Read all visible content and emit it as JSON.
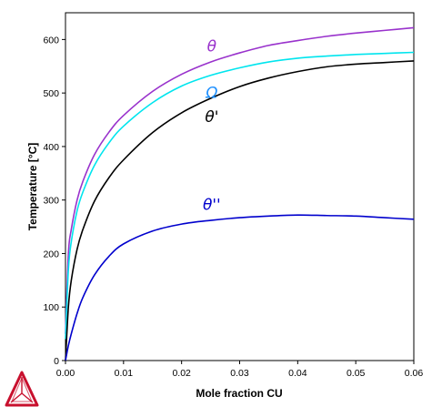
{
  "chart_data": {
    "type": "line",
    "title": "",
    "xlabel": "Mole fraction CU",
    "ylabel": "Temperature [°C]",
    "xlim": [
      0,
      0.06
    ],
    "ylim": [
      0,
      650
    ],
    "x_ticks": [
      "0.00",
      "0.01",
      "0.02",
      "0.03",
      "0.04",
      "0.05",
      "0.06"
    ],
    "y_ticks": [
      "0",
      "100",
      "200",
      "300",
      "400",
      "500",
      "600"
    ],
    "grid": false,
    "legend": "none",
    "series": [
      {
        "name": "θ",
        "color": "#9932CC",
        "x": [
          0.0,
          0.0005,
          0.001,
          0.002,
          0.003,
          0.005,
          0.0075,
          0.01,
          0.015,
          0.02,
          0.025,
          0.03,
          0.035,
          0.04,
          0.045,
          0.05,
          0.055,
          0.06
        ],
        "y": [
          50,
          200,
          245,
          300,
          335,
          385,
          427,
          458,
          503,
          535,
          558,
          575,
          589,
          598,
          606,
          612,
          617,
          622
        ]
      },
      {
        "name": "Ω",
        "color": "#00E5EE",
        "x": [
          0.0,
          0.0005,
          0.001,
          0.002,
          0.003,
          0.005,
          0.0075,
          0.01,
          0.015,
          0.02,
          0.025,
          0.03,
          0.035,
          0.04,
          0.045,
          0.05,
          0.055,
          0.06
        ],
        "y": [
          40,
          170,
          222,
          280,
          315,
          365,
          407,
          438,
          482,
          513,
          533,
          547,
          558,
          565,
          569,
          572,
          574,
          576
        ]
      },
      {
        "name": "θ'",
        "color": "#000000",
        "x": [
          0.0,
          0.0005,
          0.001,
          0.002,
          0.003,
          0.005,
          0.0075,
          0.01,
          0.015,
          0.02,
          0.025,
          0.03,
          0.035,
          0.04,
          0.045,
          0.05,
          0.055,
          0.06
        ],
        "y": [
          0,
          100,
          150,
          208,
          245,
          298,
          342,
          375,
          426,
          463,
          490,
          512,
          528,
          540,
          549,
          554,
          557,
          560
        ]
      },
      {
        "name": "θ''",
        "color": "#0000CD",
        "x": [
          0.0,
          0.0005,
          0.001,
          0.002,
          0.003,
          0.005,
          0.0075,
          0.01,
          0.015,
          0.02,
          0.025,
          0.03,
          0.035,
          0.04,
          0.045,
          0.05,
          0.055,
          0.06
        ],
        "y": [
          0,
          28,
          50,
          88,
          118,
          160,
          195,
          218,
          242,
          255,
          262,
          267,
          270,
          272,
          271,
          270,
          267,
          264
        ]
      }
    ],
    "annotations": [
      {
        "text": "θ",
        "x": 0.0252,
        "y": 578,
        "color": "#9932CC"
      },
      {
        "text": "Ω",
        "x": 0.0252,
        "y": 491,
        "color": "#1E90FF"
      },
      {
        "text": "θ'",
        "x": 0.0252,
        "y": 446,
        "color": "#000000"
      },
      {
        "text": "θ''",
        "x": 0.0252,
        "y": 282,
        "color": "#0000CD"
      }
    ]
  },
  "logo": {
    "name": "thermo-calc-logo-icon",
    "color": "#C8102E"
  }
}
